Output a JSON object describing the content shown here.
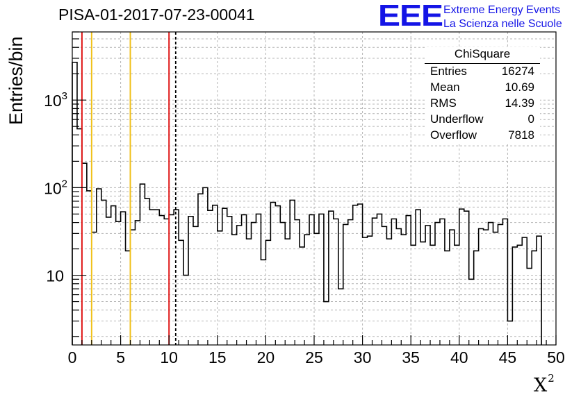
{
  "header": {
    "title": "PISA-01-2017-07-23-00041",
    "logo_mark": "EEE",
    "logo_line1": "Extreme Energy Events",
    "logo_line2": "La Scienza nelle Scuole"
  },
  "stats_box": {
    "title": "ChiSquare",
    "rows": [
      {
        "label": "Entries",
        "value": "16274"
      },
      {
        "label": "Mean",
        "value": "10.69"
      },
      {
        "label": "RMS",
        "value": "14.39"
      },
      {
        "label": "Underflow",
        "value": "0"
      },
      {
        "label": "Overflow",
        "value": "7818"
      }
    ]
  },
  "chart_data": {
    "type": "histogram",
    "title": "PISA-01-2017-07-23-00041",
    "xlabel": "X",
    "xlabel_superscript": "2",
    "ylabel": "Entries/bin",
    "xlim": [
      0,
      50
    ],
    "ylim": [
      1.6,
      6000
    ],
    "yscale": "log",
    "grid": true,
    "bin_width": 0.5,
    "x_ticks": [
      0,
      5,
      10,
      15,
      20,
      25,
      30,
      35,
      40,
      45,
      50
    ],
    "y_tick_labels": [
      {
        "value": 10,
        "label": "10"
      },
      {
        "value": 100,
        "label": "10",
        "exp": "2"
      },
      {
        "value": 1000,
        "label": "10",
        "exp": "3"
      }
    ],
    "values": [
      2700,
      470,
      190,
      92,
      31,
      97,
      72,
      46,
      62,
      41,
      53,
      19,
      33,
      42,
      110,
      75,
      56,
      56,
      48,
      44,
      49,
      56,
      25,
      10,
      47,
      36,
      85,
      100,
      55,
      63,
      32,
      58,
      47,
      29,
      37,
      49,
      26,
      40,
      50,
      15,
      25,
      68,
      62,
      40,
      26,
      72,
      43,
      21,
      29,
      49,
      30,
      50,
      5,
      54,
      44,
      7,
      38,
      43,
      63,
      65,
      27,
      28,
      45,
      50,
      36,
      26,
      44,
      34,
      29,
      48,
      22,
      56,
      24,
      37,
      22,
      40,
      44,
      19,
      33,
      22,
      57,
      54,
      9,
      19,
      34,
      33,
      40,
      31,
      38,
      44,
      3,
      21,
      22,
      27,
      12,
      19,
      28
    ],
    "vertical_lines": [
      {
        "x": 1,
        "color": "#e01818",
        "style": "solid"
      },
      {
        "x": 2,
        "color": "#f0c018",
        "style": "solid"
      },
      {
        "x": 6,
        "color": "#f0c018",
        "style": "solid"
      },
      {
        "x": 10,
        "color": "#e01818",
        "style": "solid"
      },
      {
        "x": 10.69,
        "color": "#000000",
        "style": "dashed"
      }
    ]
  }
}
